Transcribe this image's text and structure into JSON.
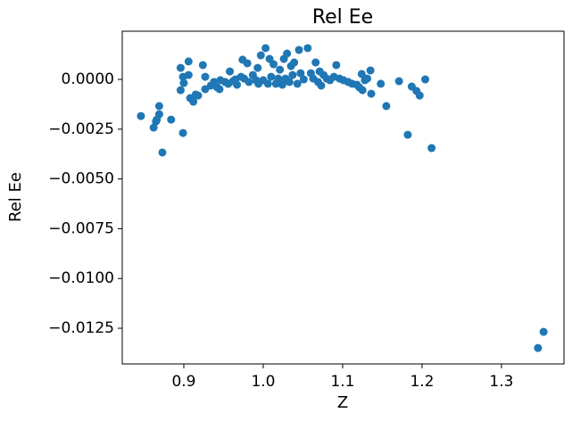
{
  "chart_data": {
    "type": "scatter",
    "title": "Rel Ee",
    "xlabel": "Z",
    "ylabel": "Rel Ee",
    "color": "#1f77b4",
    "xlim": [
      0.8225,
      1.3787
    ],
    "ylim": [
      -0.01429,
      0.00242
    ],
    "xticks": [
      0.9,
      {
        "value": 1,
        "label": "1.0"
      },
      1.1,
      1.2,
      1.3
    ],
    "yticks": [
      {
        "value": 0,
        "label": "0.0000"
      },
      {
        "value": -0.0025,
        "label": "−0.0025"
      },
      {
        "value": -0.005,
        "label": "−0.0050"
      },
      {
        "value": -0.0075,
        "label": "−0.0075"
      },
      {
        "value": -0.01,
        "label": "−0.0100"
      },
      {
        "value": -0.0125,
        "label": "−0.0125"
      }
    ],
    "grid": false,
    "x": [
      0.846,
      0.862,
      0.865,
      0.869,
      0.869,
      0.866,
      0.873,
      0.884,
      0.899,
      0.896,
      0.896,
      0.899,
      0.9,
      0.906,
      0.906,
      0.908,
      0.912,
      0.915,
      0.918,
      0.924,
      0.927,
      0.927,
      0.934,
      0.938,
      0.942,
      0.945,
      0.946,
      0.952,
      0.956,
      0.958,
      0.962,
      0.965,
      0.967,
      0.972,
      0.974,
      0.976,
      0.98,
      0.982,
      0.987,
      0.991,
      0.993,
      0.994,
      0.997,
      1.0,
      1.003,
      1.006,
      1.008,
      1.01,
      1.013,
      1.016,
      1.019,
      1.021,
      1.024,
      1.026,
      1.028,
      1.03,
      1.033,
      1.035,
      1.037,
      1.039,
      1.043,
      1.045,
      1.047,
      1.051,
      1.056,
      1.06,
      1.063,
      1.066,
      1.069,
      1.071,
      1.073,
      1.076,
      1.08,
      1.084,
      1.092,
      1.089,
      1.096,
      1.101,
      1.107,
      1.112,
      1.118,
      1.121,
      1.124,
      1.125,
      1.128,
      1.131,
      1.135,
      1.136,
      1.148,
      1.155,
      1.171,
      1.182,
      1.187,
      1.193,
      1.197,
      1.204,
      1.212,
      1.346,
      1.353
    ],
    "y": [
      -0.00184,
      -0.00242,
      -0.00211,
      -0.00134,
      -0.00175,
      -0.00202,
      -0.00367,
      -0.00202,
      -0.00269,
      0.00058,
      -0.00054,
      0.00013,
      -0.00018,
      0.0009,
      0.00022,
      -0.00094,
      -0.00112,
      -0.00076,
      -0.00081,
      0.00072,
      -0.00049,
      0.00013,
      -0.00031,
      -0.00013,
      -0.0004,
      -0.00049,
      -4e-05,
      -0.00013,
      -0.00022,
      0.0004,
      -9e-05,
      0,
      -0.00027,
      0.00013,
      0.00099,
      4e-05,
      0.00081,
      -0.00013,
      0.00022,
      -4e-05,
      0.00058,
      -0.00022,
      0.00121,
      -4e-05,
      0.00157,
      -0.00022,
      0.00103,
      0.00013,
      0.00076,
      -0.00022,
      4e-05,
      0.00049,
      -0.00027,
      0.00103,
      4e-05,
      0.0013,
      -0.00013,
      0.00067,
      0.00022,
      0.00085,
      -0.00022,
      0.00148,
      0.00031,
      0,
      0.00157,
      0.00031,
      4e-05,
      0.00085,
      -0.00013,
      0.0004,
      -0.00031,
      0.00022,
      4e-05,
      -4e-05,
      0.00072,
      0.00013,
      4e-05,
      -4e-05,
      -0.00013,
      -0.00022,
      -0.00027,
      -0.0004,
      0.00027,
      -0.00054,
      -4e-05,
      4e-05,
      0.00045,
      -0.00072,
      -0.00022,
      -0.00134,
      -9e-05,
      -0.00278,
      -0.00036,
      -0.00058,
      -0.00081,
      0,
      -0.00345,
      -0.01349,
      -0.01268
    ]
  }
}
